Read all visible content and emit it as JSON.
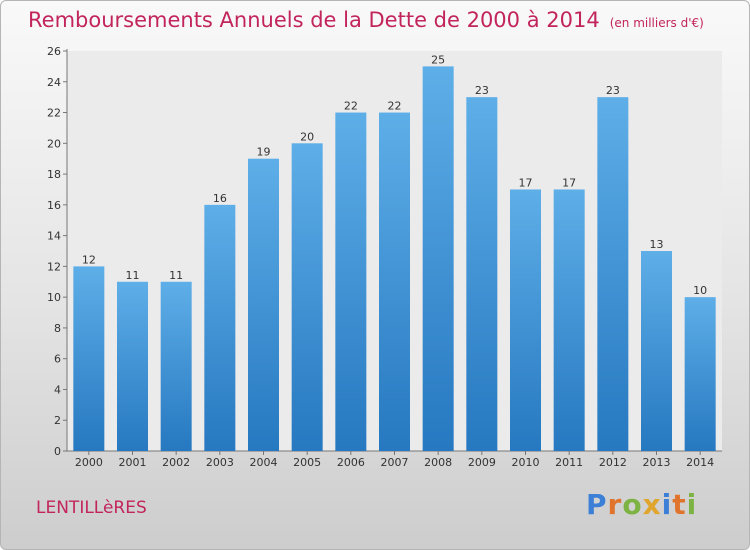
{
  "title": "Remboursements Annuels de la Dette de 2000 à 2014",
  "subtitle": "(en milliers d'€)",
  "place": "LENTILLèRES",
  "logo": {
    "letters": [
      {
        "char": "P",
        "color": "#3b7fd6"
      },
      {
        "char": "r",
        "color": "#e0742c"
      },
      {
        "char": "o",
        "color": "#7cb342"
      },
      {
        "char": "x",
        "color": "#e0a52c"
      },
      {
        "char": "i",
        "color": "#3b7fd6"
      },
      {
        "char": "t",
        "color": "#e0742c"
      },
      {
        "char": "i",
        "color": "#7cb342"
      }
    ]
  },
  "colors": {
    "bar_top": "#5eaee8",
    "bar_bottom": "#2678c0",
    "accent": "#c2255c"
  },
  "chart_data": {
    "type": "bar",
    "categories": [
      "2000",
      "2001",
      "2002",
      "2003",
      "2004",
      "2005",
      "2006",
      "2007",
      "2008",
      "2009",
      "2010",
      "2011",
      "2012",
      "2013",
      "2014"
    ],
    "values": [
      12,
      11,
      11,
      16,
      19,
      20,
      22,
      22,
      25,
      23,
      17,
      17,
      23,
      13,
      10
    ],
    "ylim": [
      0,
      26
    ],
    "yticks": [
      0,
      2,
      4,
      6,
      8,
      10,
      12,
      14,
      16,
      18,
      20,
      22,
      24,
      26
    ],
    "grid": false,
    "xlabel": "",
    "ylabel": ""
  }
}
